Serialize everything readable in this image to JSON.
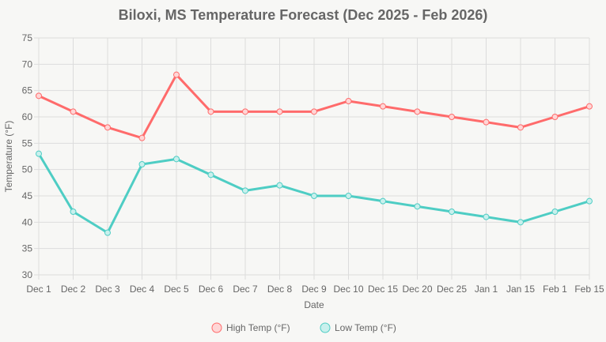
{
  "chart_data": {
    "type": "line",
    "title": "Biloxi, MS Temperature Forecast (Dec 2025 - Feb 2026)",
    "xlabel": "Date",
    "ylabel": "Temperature (°F)",
    "ylim": [
      30,
      75
    ],
    "yticks": [
      30,
      35,
      40,
      45,
      50,
      55,
      60,
      65,
      70,
      75
    ],
    "grid": true,
    "legend_position": "bottom",
    "categories": [
      "Dec 1",
      "Dec 2",
      "Dec 3",
      "Dec 4",
      "Dec 5",
      "Dec 6",
      "Dec 7",
      "Dec 8",
      "Dec 9",
      "Dec 10",
      "Dec 15",
      "Dec 20",
      "Dec 25",
      "Jan 1",
      "Jan 15",
      "Feb 1",
      "Feb 15"
    ],
    "series": [
      {
        "name": "High Temp (°F)",
        "color": "#ff6b6b",
        "fill": "#ffd6d6",
        "values": [
          64,
          61,
          58,
          56,
          68,
          61,
          61,
          61,
          61,
          63,
          62,
          61,
          60,
          59,
          58,
          60,
          62
        ]
      },
      {
        "name": "Low Temp (°F)",
        "color": "#4ecdc4",
        "fill": "#c9f0ed",
        "values": [
          53,
          42,
          38,
          51,
          52,
          49,
          46,
          47,
          45,
          45,
          44,
          43,
          42,
          41,
          40,
          42,
          44
        ]
      }
    ]
  }
}
